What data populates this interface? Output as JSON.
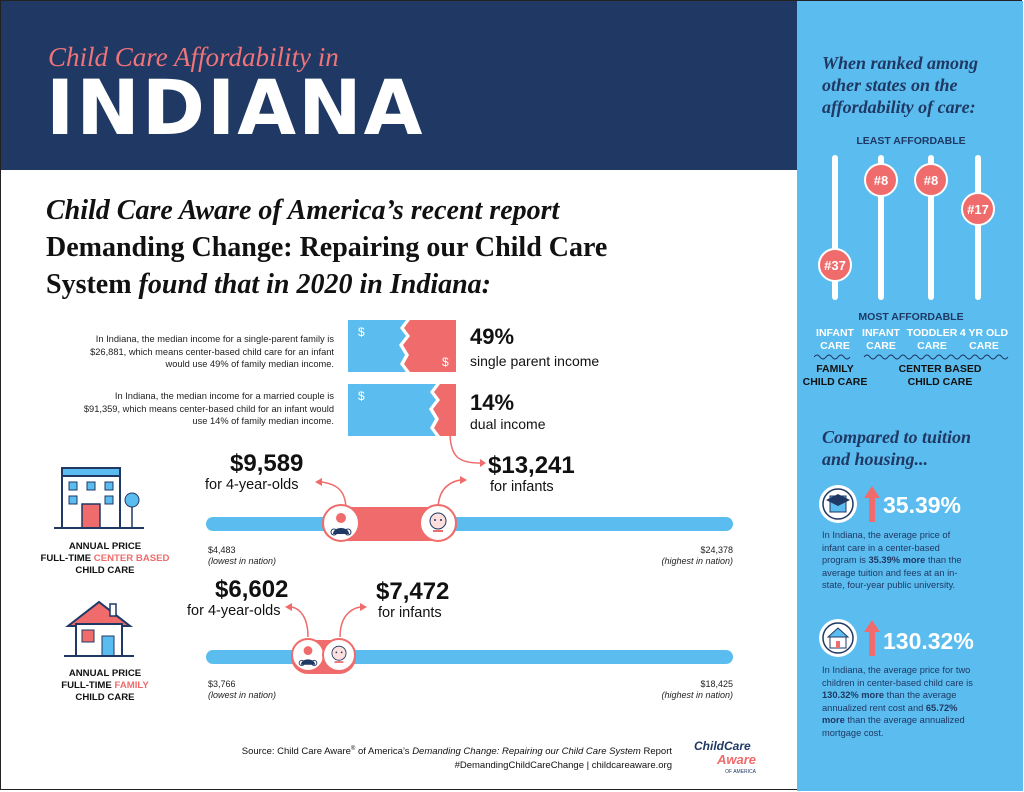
{
  "header": {
    "subtitle": "Child Care Affordability in",
    "title": "INDIANA"
  },
  "report": {
    "line1": "Child Care Aware of America’s recent report",
    "line2": "Demanding Change: Repairing our Child Care",
    "line3a": "System",
    "line3b": "found that in 2020 in Indiana:"
  },
  "income": {
    "single": {
      "note": "In Indiana, the median income for a single-parent family is $26,881, which means center-based child care for an infant would use 49% of family median income.",
      "pct": "49%",
      "label": "single parent income",
      "fraction": 0.49
    },
    "dual": {
      "note": "In Indiana, the median income for a married couple is $91,359, which means center-based child for an infant would use 14% of family median income.",
      "pct": "14%",
      "label": "dual income",
      "fraction": 0.14
    },
    "dollar_sign": "$"
  },
  "center": {
    "caption_line1": "ANNUAL PRICE",
    "caption_line2a": "FULL-TIME ",
    "caption_line2b": "CENTER BASED",
    "caption_line3": "CHILD CARE",
    "price_4yr": "$9,589",
    "label_4yr": "for 4-year-olds",
    "price_infant": "$13,241",
    "label_infant": "for infants",
    "low_value": "$4,483",
    "low_label": "(lowest in nation)",
    "high_value": "$24,378",
    "high_label": "(highest in nation)",
    "range": [
      4483,
      24378
    ],
    "marks": [
      9589,
      13241
    ]
  },
  "family": {
    "caption_line1": "ANNUAL PRICE",
    "caption_line2a": "FULL-TIME ",
    "caption_line2b": "FAMILY",
    "caption_line3": "CHILD CARE",
    "price_4yr": "$6,602",
    "label_4yr": "for 4-year-olds",
    "price_infant": "$7,472",
    "label_infant": "for infants",
    "low_value": "$3,766",
    "low_label": "(lowest in nation)",
    "high_value": "$18,425",
    "high_label": "(highest in nation)",
    "range": [
      3766,
      18425
    ],
    "marks": [
      6602,
      7472
    ]
  },
  "source": {
    "line1a": "Source: Child Care Aware",
    "line1b": " of America’s ",
    "line1c": "Demanding Change: Repairing our Child Care System",
    "line1d": " Report",
    "line2": "#DemandingChildCareChange | childcareaware.org",
    "logo_top": "ChildCare",
    "logo_bottom": "Aware",
    "logo_small": "OF AMERICA"
  },
  "sidebar": {
    "rank_heading": "When ranked among other states on the affordability of care:",
    "least": "LEAST AFFORDABLE",
    "most": "MOST AFFORDABLE",
    "ranks": [
      {
        "rank": "#37",
        "l1": "INFANT",
        "l2": "CARE",
        "value": 37
      },
      {
        "rank": "#8",
        "l1": "INFANT",
        "l2": "CARE",
        "value": 8
      },
      {
        "rank": "#8",
        "l1": "TODDLER",
        "l2": "CARE",
        "value": 8
      },
      {
        "rank": "#17",
        "l1": "4 YR OLD",
        "l2": "CARE",
        "value": 17
      }
    ],
    "group_family_1": "FAMILY",
    "group_family_2": "CHILD CARE",
    "group_center_1": "CENTER BASED",
    "group_center_2": "CHILD CARE",
    "compare_heading": "Compared to tuition and housing...",
    "tuition_pct": "35.39%",
    "tuition_text_a": "In Indiana, the average price of infant care in a center-based program is ",
    "tuition_text_b": "35.39% more",
    "tuition_text_c": " than the average tuition and fees at an in-state, four-year public university.",
    "housing_pct": "130.32%",
    "housing_text_a": "In Indiana, the average price for two children in center-based child care is ",
    "housing_text_b": "130.32% more",
    "housing_text_c": " than the average annualized rent cost and ",
    "housing_text_d": "65.72% more",
    "housing_text_e": " than the average annualized mortgage cost."
  },
  "colors": {
    "navy": "#1f3864",
    "coral": "#f06b6b",
    "sky": "#5bbdef"
  }
}
